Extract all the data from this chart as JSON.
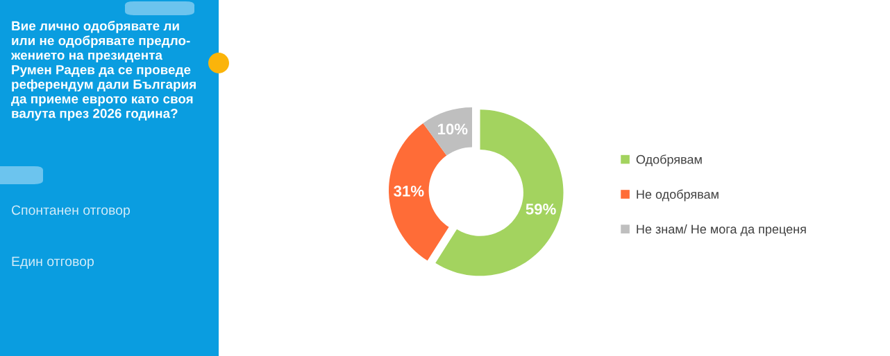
{
  "chart_data": {
    "type": "donut",
    "title": "Вие лично одобрявате ли\nили не одобрявате предло-\nжението на президента\nРумен Радев да се проведе\nреферендум дали България\nда приеме еврото като своя\nвалута през 2026 година?",
    "annotations": [
      "Спонтанен отговор",
      "Един отговор"
    ],
    "categories": [
      "Одобрявам",
      "Не одобрявам",
      "Не знам/ Не мога да преценя"
    ],
    "values": [
      59,
      31,
      10
    ],
    "colors": [
      "#a3d35f",
      "#ff6c37",
      "#bfbfbf"
    ],
    "value_labels": [
      "59%",
      "31%",
      "10%"
    ],
    "legend": "right"
  }
}
